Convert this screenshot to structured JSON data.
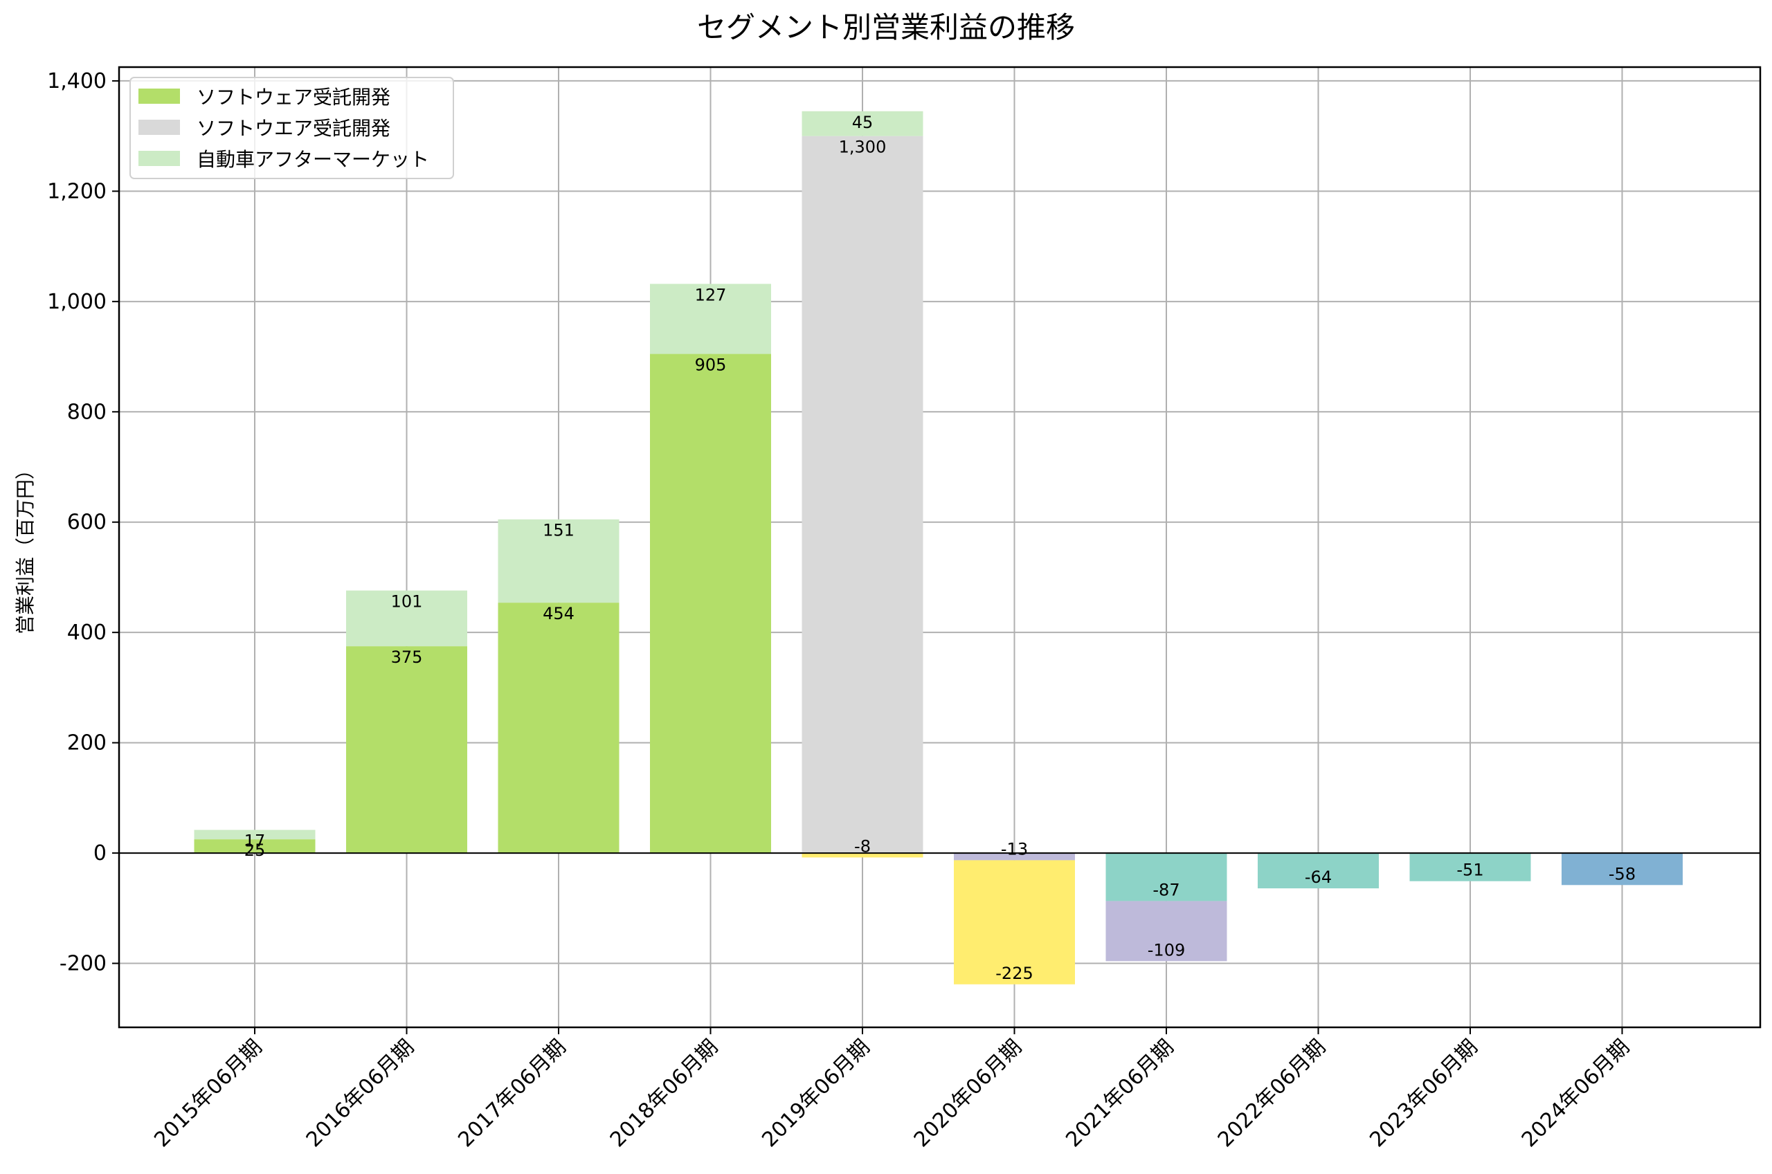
{
  "chart_data": {
    "type": "bar",
    "stacked": true,
    "title": "セグメント別営業利益の推移",
    "xlabel": "",
    "ylabel": "営業利益（百万円）",
    "ylim": [
      -316,
      1425
    ],
    "yticks": [
      -200,
      0,
      200,
      400,
      600,
      800,
      1000,
      1200,
      1400
    ],
    "ytick_labels": [
      "-200",
      "0",
      "200",
      "400",
      "600",
      "800",
      "1,000",
      "1,200",
      "1,400"
    ],
    "grid": true,
    "legend_position": "upper left",
    "categories": [
      "2015年06月期",
      "2016年06月期",
      "2017年06月期",
      "2018年06月期",
      "2019年06月期",
      "2020年06月期",
      "2021年06月期",
      "2022年06月期",
      "2023年06月期",
      "2024年06月期"
    ],
    "series": [
      {
        "name": "ソフトウェア受託開発",
        "color": "#b3de69",
        "in_legend": true,
        "values": [
          25,
          375,
          454,
          905,
          null,
          null,
          null,
          null,
          null,
          null
        ]
      },
      {
        "name": "ソフトウエア受託開発",
        "color": "#d9d9d9",
        "in_legend": true,
        "values": [
          null,
          null,
          null,
          null,
          1300,
          null,
          null,
          null,
          null,
          null
        ]
      },
      {
        "name": "自動車アフターマーケット",
        "color": "#ccebc5",
        "in_legend": true,
        "values": [
          17,
          101,
          151,
          127,
          45,
          null,
          null,
          null,
          null,
          null
        ]
      },
      {
        "name": "series-yellow",
        "color": "#ffed6f",
        "in_legend": false,
        "values": [
          null,
          null,
          null,
          null,
          -8,
          -225,
          null,
          null,
          null,
          null
        ]
      },
      {
        "name": "series-purple",
        "color": "#bebada",
        "in_legend": false,
        "values": [
          null,
          null,
          null,
          null,
          null,
          -13,
          -109,
          null,
          null,
          null
        ]
      },
      {
        "name": "series-teal",
        "color": "#8dd3c7",
        "in_legend": false,
        "values": [
          null,
          null,
          null,
          null,
          null,
          null,
          -87,
          -64,
          -51,
          null
        ]
      },
      {
        "name": "series-blue",
        "color": "#80b1d3",
        "in_legend": false,
        "values": [
          null,
          null,
          null,
          null,
          null,
          null,
          null,
          null,
          null,
          -58
        ]
      }
    ],
    "stacks": [
      [
        {
          "series": 0,
          "value": 25,
          "label": "25"
        },
        {
          "series": 2,
          "value": 17,
          "label": "17"
        }
      ],
      [
        {
          "series": 0,
          "value": 375,
          "label": "375"
        },
        {
          "series": 2,
          "value": 101,
          "label": "101"
        }
      ],
      [
        {
          "series": 0,
          "value": 454,
          "label": "454"
        },
        {
          "series": 2,
          "value": 151,
          "label": "151"
        }
      ],
      [
        {
          "series": 0,
          "value": 905,
          "label": "905"
        },
        {
          "series": 2,
          "value": 127,
          "label": "127"
        }
      ],
      [
        {
          "series": 1,
          "value": 1300,
          "label": "1,300"
        },
        {
          "series": 2,
          "value": 45,
          "label": "45"
        },
        {
          "series": 3,
          "value": -8,
          "label": "-8"
        }
      ],
      [
        {
          "series": 4,
          "value": -13,
          "label": "-13"
        },
        {
          "series": 3,
          "value": -225,
          "label": "-225"
        }
      ],
      [
        {
          "series": 5,
          "value": -87,
          "label": "-87"
        },
        {
          "series": 4,
          "value": -109,
          "label": "-109"
        }
      ],
      [
        {
          "series": 5,
          "value": -64,
          "label": "-64"
        }
      ],
      [
        {
          "series": 5,
          "value": -51,
          "label": "-51"
        }
      ],
      [
        {
          "series": 6,
          "value": -58,
          "label": "-58"
        }
      ]
    ]
  },
  "legend": {
    "items": [
      {
        "label": "ソフトウェア受託開発",
        "color": "#b3de69"
      },
      {
        "label": "ソフトウエア受託開発",
        "color": "#d9d9d9"
      },
      {
        "label": "自動車アフターマーケット",
        "color": "#ccebc5"
      }
    ]
  }
}
